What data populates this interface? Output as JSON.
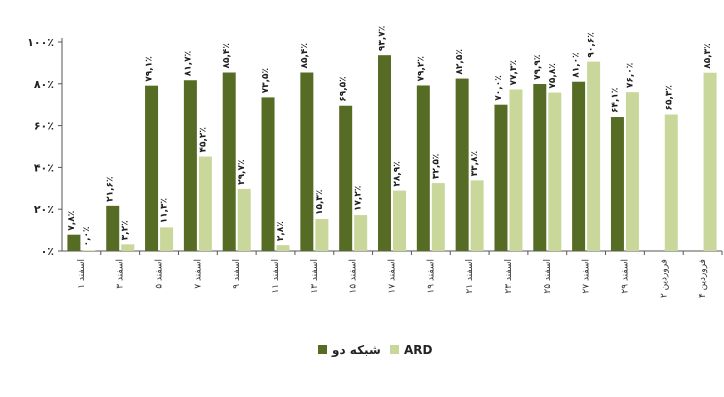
{
  "chart_data": {
    "type": "bar",
    "title": "",
    "xlabel": "",
    "ylabel": "",
    "ylim": [
      0,
      100
    ],
    "yticks": [
      "۰٪",
      "۲۰٪",
      "۴۰٪",
      "۶۰٪",
      "۸۰٪",
      "۱۰۰٪"
    ],
    "grid": false,
    "legend_position": "bottom",
    "categories": [
      "۱ اسفند",
      "۳ اسفند",
      "۵ اسفند",
      "۷ اسفند",
      "۹ اسفند",
      "۱۱ اسفند",
      "۱۳ اسفند",
      "۱۵ اسفند",
      "۱۷ اسفند",
      "۱۹ اسفند",
      "۲۱ اسفند",
      "۲۳ اسفند",
      "۲۵ اسفند",
      "۲۷ اسفند",
      "۲۹ اسفند",
      "۲ فروردین",
      "۴ فروردین"
    ],
    "series": [
      {
        "name": "شبکه دو",
        "color": "#566b24",
        "values": [
          7.8,
          21.6,
          79.1,
          81.7,
          85.4,
          73.5,
          85.4,
          69.5,
          93.7,
          79.2,
          82.5,
          70.0,
          79.9,
          81.0,
          64.1,
          null,
          null
        ],
        "labels": [
          "۷,۸٪",
          "۲۱,۶٪",
          "۷۹,۱٪",
          "۸۱,۷٪",
          "۸۵,۴٪",
          "۷۳,۵٪",
          "۸۵,۴٪",
          "۶۹,۵٪",
          "۹۳,۷٪",
          "۷۹,۲٪",
          "۸۲,۵٪",
          "۷۰,۰٪",
          "۷۹,۹٪",
          "۸۱,۰٪",
          "۶۴,۱٪",
          "",
          ""
        ]
      },
      {
        "name": "ARD",
        "color": "#c9d79a",
        "values": [
          0.0,
          3.2,
          11.3,
          45.2,
          29.7,
          2.8,
          15.3,
          17.2,
          28.9,
          32.5,
          33.8,
          77.3,
          75.8,
          90.6,
          76.0,
          65.3,
          85.3
        ],
        "labels": [
          "۰,۰٪",
          "۳,۲٪",
          "۱۱,۳٪",
          "۴۵,۲٪",
          "۲۹,۷٪",
          "۲,۸٪",
          "۱۵,۳٪",
          "۱۷,۲٪",
          "۲۸,۹٪",
          "۳۲,۵٪",
          "۳۳,۸٪",
          "۷۷,۳٪",
          "۷۵,۸٪",
          "۹۰,۶٪",
          "۷۶,۰٪",
          "۶۵,۳٪",
          "۸۵,۳٪"
        ]
      }
    ]
  }
}
